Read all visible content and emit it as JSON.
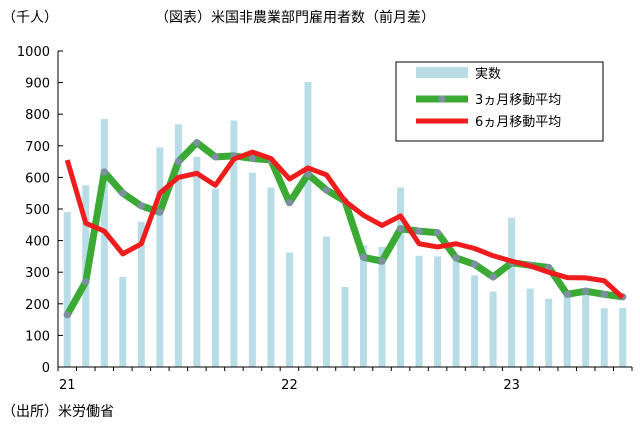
{
  "chart_data": {
    "type": "bar",
    "title": "（図表）米国非農業部門雇用者数（前月差）",
    "ylabel": "（千人）",
    "source": "（出所）米労働省",
    "ylim": [
      0,
      1000
    ],
    "yticks": [
      0,
      100,
      200,
      300,
      400,
      500,
      600,
      700,
      800,
      900,
      1000
    ],
    "x_labels": [
      {
        "index": 0,
        "label": "21"
      },
      {
        "index": 12,
        "label": "22"
      },
      {
        "index": 24,
        "label": "23"
      }
    ],
    "grid": false,
    "legend_position": "top-right",
    "series": [
      {
        "name": "実数",
        "kind": "bar",
        "color": "#b8dde6",
        "values": [
          490,
          575,
          785,
          285,
          460,
          695,
          768,
          665,
          565,
          780,
          615,
          568,
          362,
          902,
          413,
          253,
          385,
          380,
          568,
          352,
          350,
          350,
          290,
          239,
          472,
          248,
          216,
          233,
          236,
          186,
          187
        ]
      },
      {
        "name": "3ヵ月移動平均",
        "kind": "line-marker",
        "color": "#3aaa35",
        "marker_color": "#7f8fa3",
        "values": [
          165,
          270,
          617,
          550,
          510,
          490,
          650,
          710,
          665,
          668,
          660,
          655,
          520,
          610,
          560,
          525,
          347,
          335,
          437,
          430,
          425,
          345,
          325,
          285,
          330,
          322,
          315,
          230,
          240,
          230,
          222
        ]
      },
      {
        "name": "6ヵ月移動平均",
        "kind": "line",
        "color": "#ee1c1c",
        "values": [
          655,
          455,
          430,
          358,
          390,
          550,
          600,
          613,
          575,
          658,
          680,
          660,
          595,
          630,
          608,
          525,
          480,
          448,
          478,
          390,
          380,
          390,
          375,
          352,
          335,
          320,
          300,
          283,
          282,
          273,
          220
        ]
      }
    ]
  }
}
